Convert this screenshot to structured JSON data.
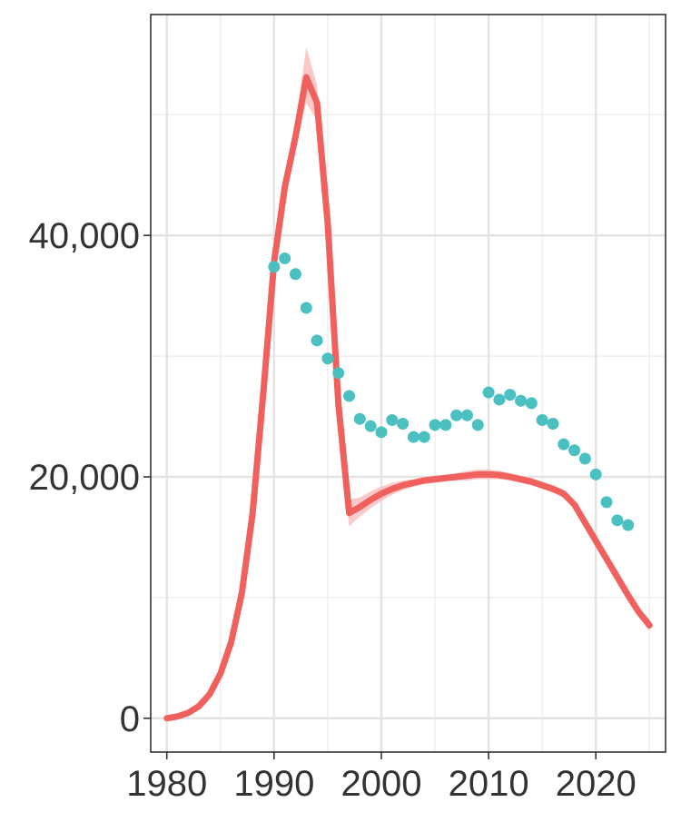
{
  "chart_data": {
    "type": "line",
    "title": "",
    "xlabel": "",
    "ylabel": "",
    "xlim": [
      1978.5,
      2026.5
    ],
    "ylim": [
      -2800,
      58300
    ],
    "x_ticks": [
      1980,
      1990,
      2000,
      2010,
      2020
    ],
    "x_tick_labels": [
      "1980",
      "1990",
      "2000",
      "2010",
      "2020"
    ],
    "y_ticks": [
      0,
      20000,
      40000
    ],
    "y_tick_labels": [
      "0",
      "20,000",
      "40,000"
    ],
    "grid": true,
    "legend": "none",
    "series": [
      {
        "type": "line",
        "color": "#F0605D",
        "band_color": "#F8B8B8",
        "x": [
          1980,
          1981,
          1982,
          1983,
          1984,
          1985,
          1986,
          1987,
          1988,
          1989,
          1990,
          1991,
          1992,
          1993,
          1994,
          1995,
          1996,
          1997,
          1998,
          1999,
          2000,
          2001,
          2002,
          2003,
          2004,
          2005,
          2006,
          2007,
          2008,
          2009,
          2010,
          2011,
          2012,
          2013,
          2014,
          2015,
          2016,
          2017,
          2018,
          2019,
          2020,
          2021,
          2022,
          2023,
          2024,
          2025
        ],
        "y": [
          0,
          150,
          450,
          1000,
          2000,
          3700,
          6300,
          10400,
          17000,
          27000,
          37800,
          44000,
          48200,
          53100,
          51000,
          41000,
          26000,
          17000,
          17500,
          18100,
          18600,
          19000,
          19300,
          19500,
          19700,
          19800,
          19900,
          20000,
          20100,
          20200,
          20200,
          20150,
          20000,
          19800,
          19600,
          19300,
          19000,
          18600,
          17700,
          16200,
          14700,
          13200,
          11700,
          10200,
          8800,
          7700
        ],
        "band_low": [
          0,
          150,
          450,
          1000,
          2000,
          3700,
          6300,
          10400,
          17000,
          27000,
          37300,
          43000,
          47200,
          51000,
          49500,
          40000,
          25000,
          15900,
          16700,
          17400,
          18000,
          18500,
          18900,
          19200,
          19400,
          19500,
          19600,
          19700,
          19700,
          19800,
          19800,
          19800,
          19700,
          19500,
          19300,
          19000,
          18700,
          18300,
          17400,
          15900,
          14400,
          12900,
          11400,
          9900,
          8500,
          7200
        ],
        "band_high": [
          0,
          150,
          450,
          1000,
          2000,
          3700,
          6300,
          10400,
          17000,
          27000,
          38300,
          45000,
          49200,
          55600,
          52500,
          42000,
          27000,
          18100,
          18300,
          18800,
          19200,
          19500,
          19700,
          19800,
          20000,
          20100,
          20200,
          20300,
          20500,
          20600,
          20600,
          20500,
          20300,
          20100,
          19900,
          19600,
          19300,
          18900,
          18000,
          16500,
          15000,
          13500,
          12000,
          10500,
          9100,
          8200
        ]
      },
      {
        "type": "scatter",
        "color": "#4BC0C0",
        "x": [
          1990,
          1991,
          1992,
          1993,
          1994,
          1995,
          1996,
          1997,
          1998,
          1999,
          2000,
          2001,
          2002,
          2003,
          2004,
          2005,
          2006,
          2007,
          2008,
          2009,
          2010,
          2011,
          2012,
          2013,
          2014,
          2015,
          2016,
          2017,
          2018,
          2019,
          2020,
          2021,
          2022,
          2023
        ],
        "y": [
          37400,
          38100,
          36800,
          34000,
          31300,
          29800,
          28600,
          26700,
          24800,
          24200,
          23700,
          24700,
          24400,
          23300,
          23300,
          24300,
          24300,
          25100,
          25100,
          24300,
          27000,
          26400,
          26800,
          26300,
          26100,
          24700,
          24400,
          22700,
          22200,
          21500,
          20200,
          17900,
          16400,
          16000
        ]
      }
    ]
  }
}
